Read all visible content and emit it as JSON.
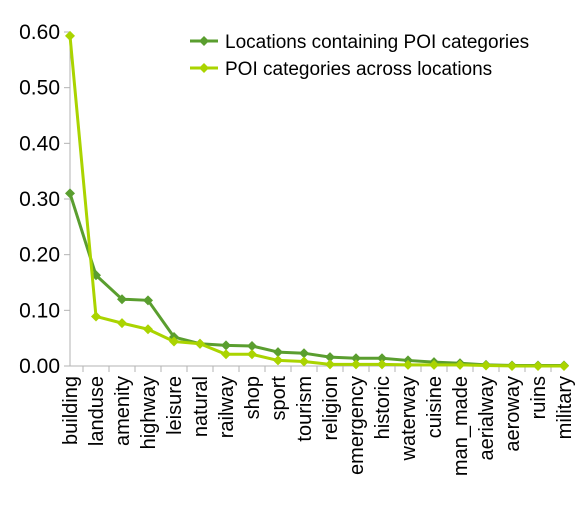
{
  "chart_data": {
    "type": "line",
    "title": "",
    "xlabel": "",
    "ylabel": "",
    "ylim": [
      0,
      0.6
    ],
    "yticks": [
      "0.00",
      "0.10",
      "0.20",
      "0.30",
      "0.40",
      "0.50",
      "0.60"
    ],
    "grid": false,
    "legend_position": "top-right",
    "categories": [
      "building",
      "landuse",
      "amenity",
      "highway",
      "leisure",
      "natural",
      "railway",
      "shop",
      "sport",
      "tourism",
      "religion",
      "emergency",
      "historic",
      "waterway",
      "cuisine",
      "man_made",
      "aerialway",
      "aeroway",
      "ruins",
      "military"
    ],
    "series": [
      {
        "name": "Locations containing POI categories",
        "color": "#5a9e2f",
        "marker": "diamond",
        "values": [
          0.31,
          0.163,
          0.12,
          0.118,
          0.052,
          0.04,
          0.037,
          0.036,
          0.025,
          0.023,
          0.016,
          0.014,
          0.014,
          0.01,
          0.007,
          0.005,
          0.002,
          0.001,
          0.001,
          0.001
        ]
      },
      {
        "name": "POI categories across locations",
        "color": "#aad400",
        "marker": "diamond",
        "values": [
          0.593,
          0.089,
          0.077,
          0.066,
          0.044,
          0.04,
          0.021,
          0.021,
          0.01,
          0.008,
          0.003,
          0.003,
          0.003,
          0.002,
          0.002,
          0.002,
          0.001,
          0.0,
          0.0,
          0.0
        ]
      }
    ]
  }
}
